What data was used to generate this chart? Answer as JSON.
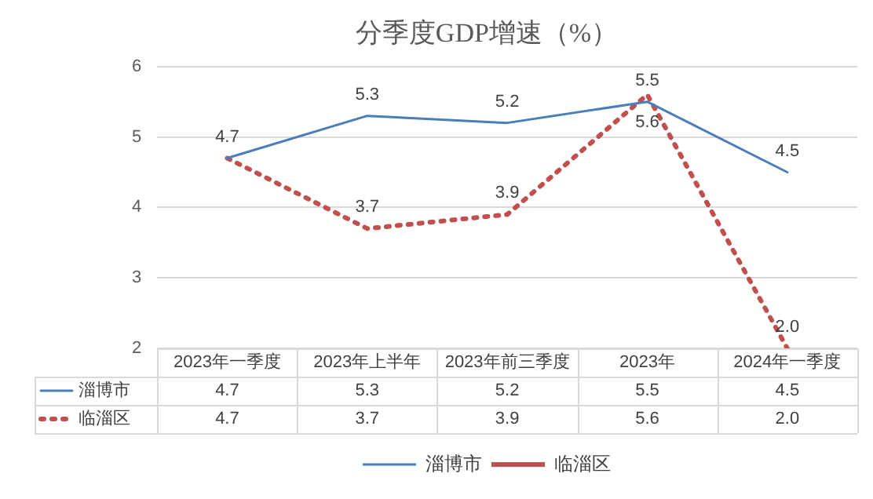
{
  "chart_data": {
    "type": "line",
    "title": "分季度GDP增速（%）",
    "categories": [
      "2023年一季度",
      "2023年上半年",
      "2023年前三季度",
      "2023年",
      "2024年一季度"
    ],
    "series": [
      {
        "name": "淄博市",
        "color": "#4a7ebb",
        "line_style": "solid",
        "values": [
          4.7,
          5.3,
          5.2,
          5.5,
          4.5
        ],
        "value_labels": [
          "4.7",
          "5.3",
          "5.2",
          "5.5",
          "4.5"
        ]
      },
      {
        "name": "临淄区",
        "color": "#c0504d",
        "line_style": "dotted",
        "values": [
          4.7,
          3.7,
          3.9,
          5.6,
          2.0
        ],
        "value_labels": [
          "4.7",
          "3.7",
          "3.9",
          "5.6",
          "2.0"
        ]
      }
    ],
    "ylim": [
      2,
      6
    ],
    "yticks": [
      2,
      3,
      4,
      5,
      6
    ],
    "grid": "y",
    "legend": "bottom",
    "marker": "none"
  }
}
